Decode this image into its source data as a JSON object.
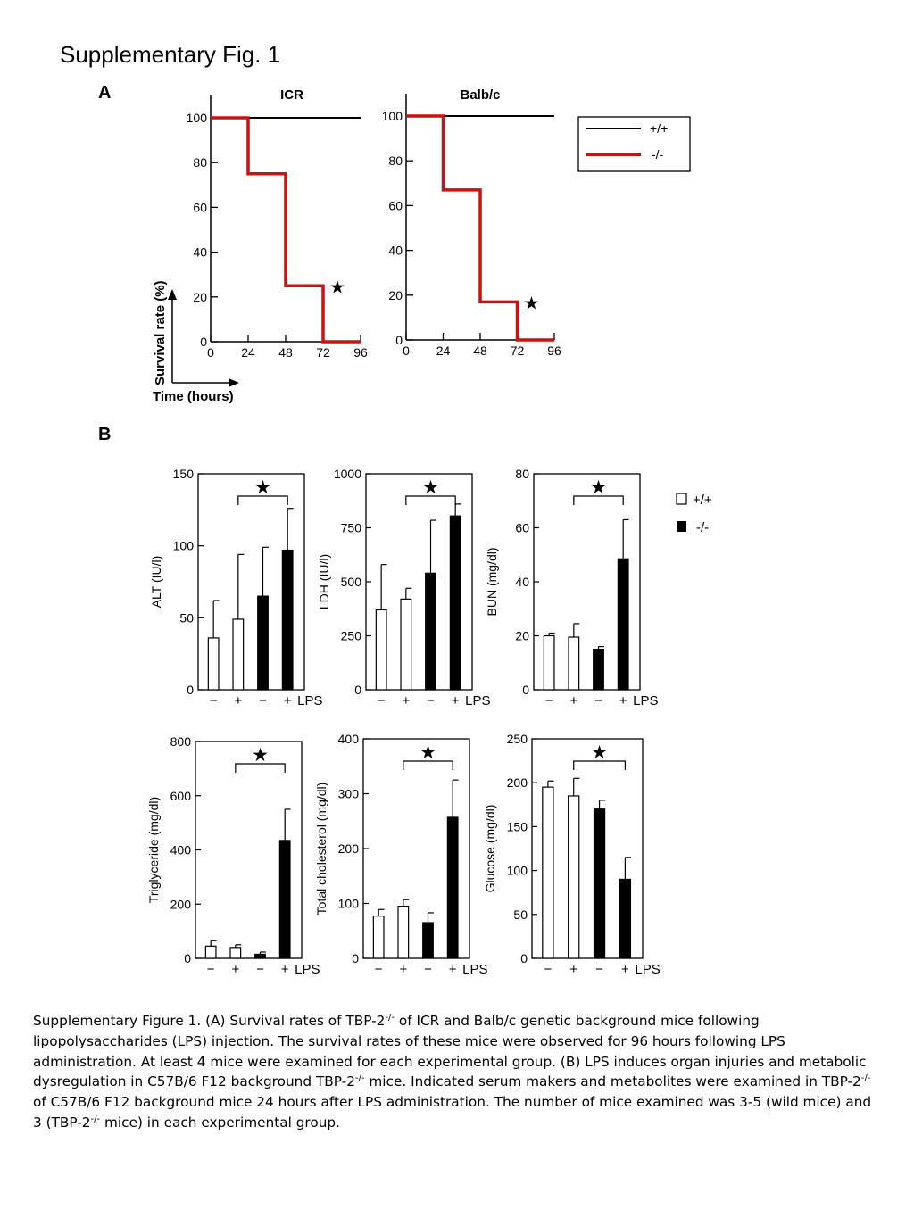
{
  "figure_title": "Supplementary Fig. 1",
  "panel_a_label": "A",
  "panel_b_label": "B",
  "colors": {
    "wild_type": "#000000",
    "knockout": "#cc1111",
    "bar_wt": "#ffffff",
    "bar_ko": "#000000"
  },
  "significance_symbol": "★",
  "caption": {
    "parts": [
      "Supplementary Figure 1. (A) Survival rates of TBP-2",
      "-/-",
      " of ICR and Balb/c genetic background mice following lipopolysaccharides (LPS) injection. The survival rates of these mice were observed for 96 hours following LPS administration. At least 4 mice were examined for each experimental group. (B) LPS induces organ injuries and metabolic dysregulation in C57B/6 F12 background TBP-2",
      "-/-",
      " mice. Indicated serum makers and metabolites were examined in TBP-2",
      "-/-",
      " of C57B/6 F12 background mice 24 hours after LPS administration. The number of mice examined was 3-5 (wild mice) and 3 (TBP-2",
      "-/-",
      " mice) in each experimental group."
    ]
  },
  "chart_data": [
    {
      "type": "line",
      "panel": "A",
      "title": "ICR",
      "xlabel": "Time (hours)",
      "ylabel": "Survival rate (%)",
      "xlim": [
        0,
        96
      ],
      "ylim": [
        0,
        100
      ],
      "xticks": [
        0,
        24,
        48,
        72,
        96
      ],
      "yticks": [
        0,
        20,
        40,
        60,
        80,
        100
      ],
      "series": [
        {
          "name": "+/+",
          "step": true,
          "x": [
            0,
            96
          ],
          "y": [
            100,
            100
          ]
        },
        {
          "name": "-/-",
          "step": true,
          "x": [
            0,
            24,
            48,
            72,
            96
          ],
          "y": [
            100,
            75,
            25,
            0,
            0
          ]
        }
      ],
      "annotation": "★"
    },
    {
      "type": "line",
      "panel": "A",
      "title": "Balb/c",
      "xlim": [
        0,
        96
      ],
      "ylim": [
        0,
        100
      ],
      "xticks": [
        0,
        24,
        48,
        72,
        96
      ],
      "yticks": [
        0,
        20,
        40,
        60,
        80,
        100
      ],
      "series": [
        {
          "name": "+/+",
          "step": true,
          "x": [
            0,
            96
          ],
          "y": [
            100,
            100
          ]
        },
        {
          "name": "-/-",
          "step": true,
          "x": [
            0,
            24,
            48,
            72,
            96
          ],
          "y": [
            100,
            67,
            17,
            0,
            0
          ]
        }
      ],
      "annotation": "★",
      "legend": [
        "+/+",
        "-/-"
      ],
      "legend_position": "right"
    },
    {
      "type": "bar",
      "panel": "B",
      "ylabel": "ALT (IU/l)",
      "ylim": [
        0,
        150
      ],
      "yticks": [
        0,
        50,
        100,
        150
      ],
      "categories": [
        "−",
        "+",
        "−",
        "+"
      ],
      "category_suffix": "LPS",
      "genotype": [
        "+/+",
        "+/+",
        "-/-",
        "-/-"
      ],
      "values": [
        36,
        49,
        65,
        97
      ],
      "errors": [
        26,
        45,
        34,
        29
      ],
      "significance": [
        1,
        3
      ]
    },
    {
      "type": "bar",
      "panel": "B",
      "ylabel": "LDH (IU/l)",
      "ylim": [
        0,
        1000
      ],
      "yticks": [
        0,
        250,
        500,
        750,
        1000
      ],
      "categories": [
        "−",
        "+",
        "−",
        "+"
      ],
      "category_suffix": "LPS",
      "genotype": [
        "+/+",
        "+/+",
        "-/-",
        "-/-"
      ],
      "values": [
        370,
        420,
        540,
        805
      ],
      "errors": [
        210,
        50,
        245,
        55
      ],
      "significance": [
        1,
        3
      ]
    },
    {
      "type": "bar",
      "panel": "B",
      "ylabel": "BUN (mg/dl)",
      "ylim": [
        0,
        80
      ],
      "yticks": [
        0,
        20,
        40,
        60,
        80
      ],
      "categories": [
        "−",
        "+",
        "−",
        "+"
      ],
      "category_suffix": "LPS",
      "genotype": [
        "+/+",
        "+/+",
        "-/-",
        "-/-"
      ],
      "values": [
        20,
        19.5,
        15,
        48.5
      ],
      "errors": [
        1,
        5,
        1,
        14.5
      ],
      "significance": [
        1,
        3
      ],
      "legend": [
        "+/+",
        "-/-"
      ]
    },
    {
      "type": "bar",
      "panel": "B",
      "ylabel": "Triglyceride (mg/dl)",
      "ylim": [
        0,
        800
      ],
      "yticks": [
        0,
        200,
        400,
        600,
        800
      ],
      "categories": [
        "−",
        "+",
        "−",
        "+"
      ],
      "category_suffix": "LPS",
      "genotype": [
        "+/+",
        "+/+",
        "-/-",
        "-/-"
      ],
      "values": [
        45,
        40,
        15,
        435
      ],
      "errors": [
        20,
        10,
        8,
        115
      ],
      "significance": [
        1,
        3
      ]
    },
    {
      "type": "bar",
      "panel": "B",
      "ylabel": "Total cholesterol (mg/dl)",
      "ylim": [
        0,
        400
      ],
      "yticks": [
        0,
        100,
        200,
        300,
        400
      ],
      "categories": [
        "−",
        "+",
        "−",
        "+"
      ],
      "category_suffix": "LPS",
      "genotype": [
        "+/+",
        "+/+",
        "-/-",
        "-/-"
      ],
      "values": [
        77,
        95,
        65,
        257
      ],
      "errors": [
        12,
        12,
        18,
        68
      ],
      "significance": [
        1,
        3
      ]
    },
    {
      "type": "bar",
      "panel": "B",
      "ylabel": "Glucose (mg/dl)",
      "ylim": [
        0,
        250
      ],
      "yticks": [
        0,
        50,
        100,
        150,
        200,
        250
      ],
      "categories": [
        "−",
        "+",
        "−",
        "+"
      ],
      "category_suffix": "LPS",
      "genotype": [
        "+/+",
        "+/+",
        "-/-",
        "-/-"
      ],
      "values": [
        195,
        185,
        170,
        90
      ],
      "errors": [
        7,
        20,
        10,
        25
      ],
      "significance": [
        1,
        3
      ]
    }
  ]
}
